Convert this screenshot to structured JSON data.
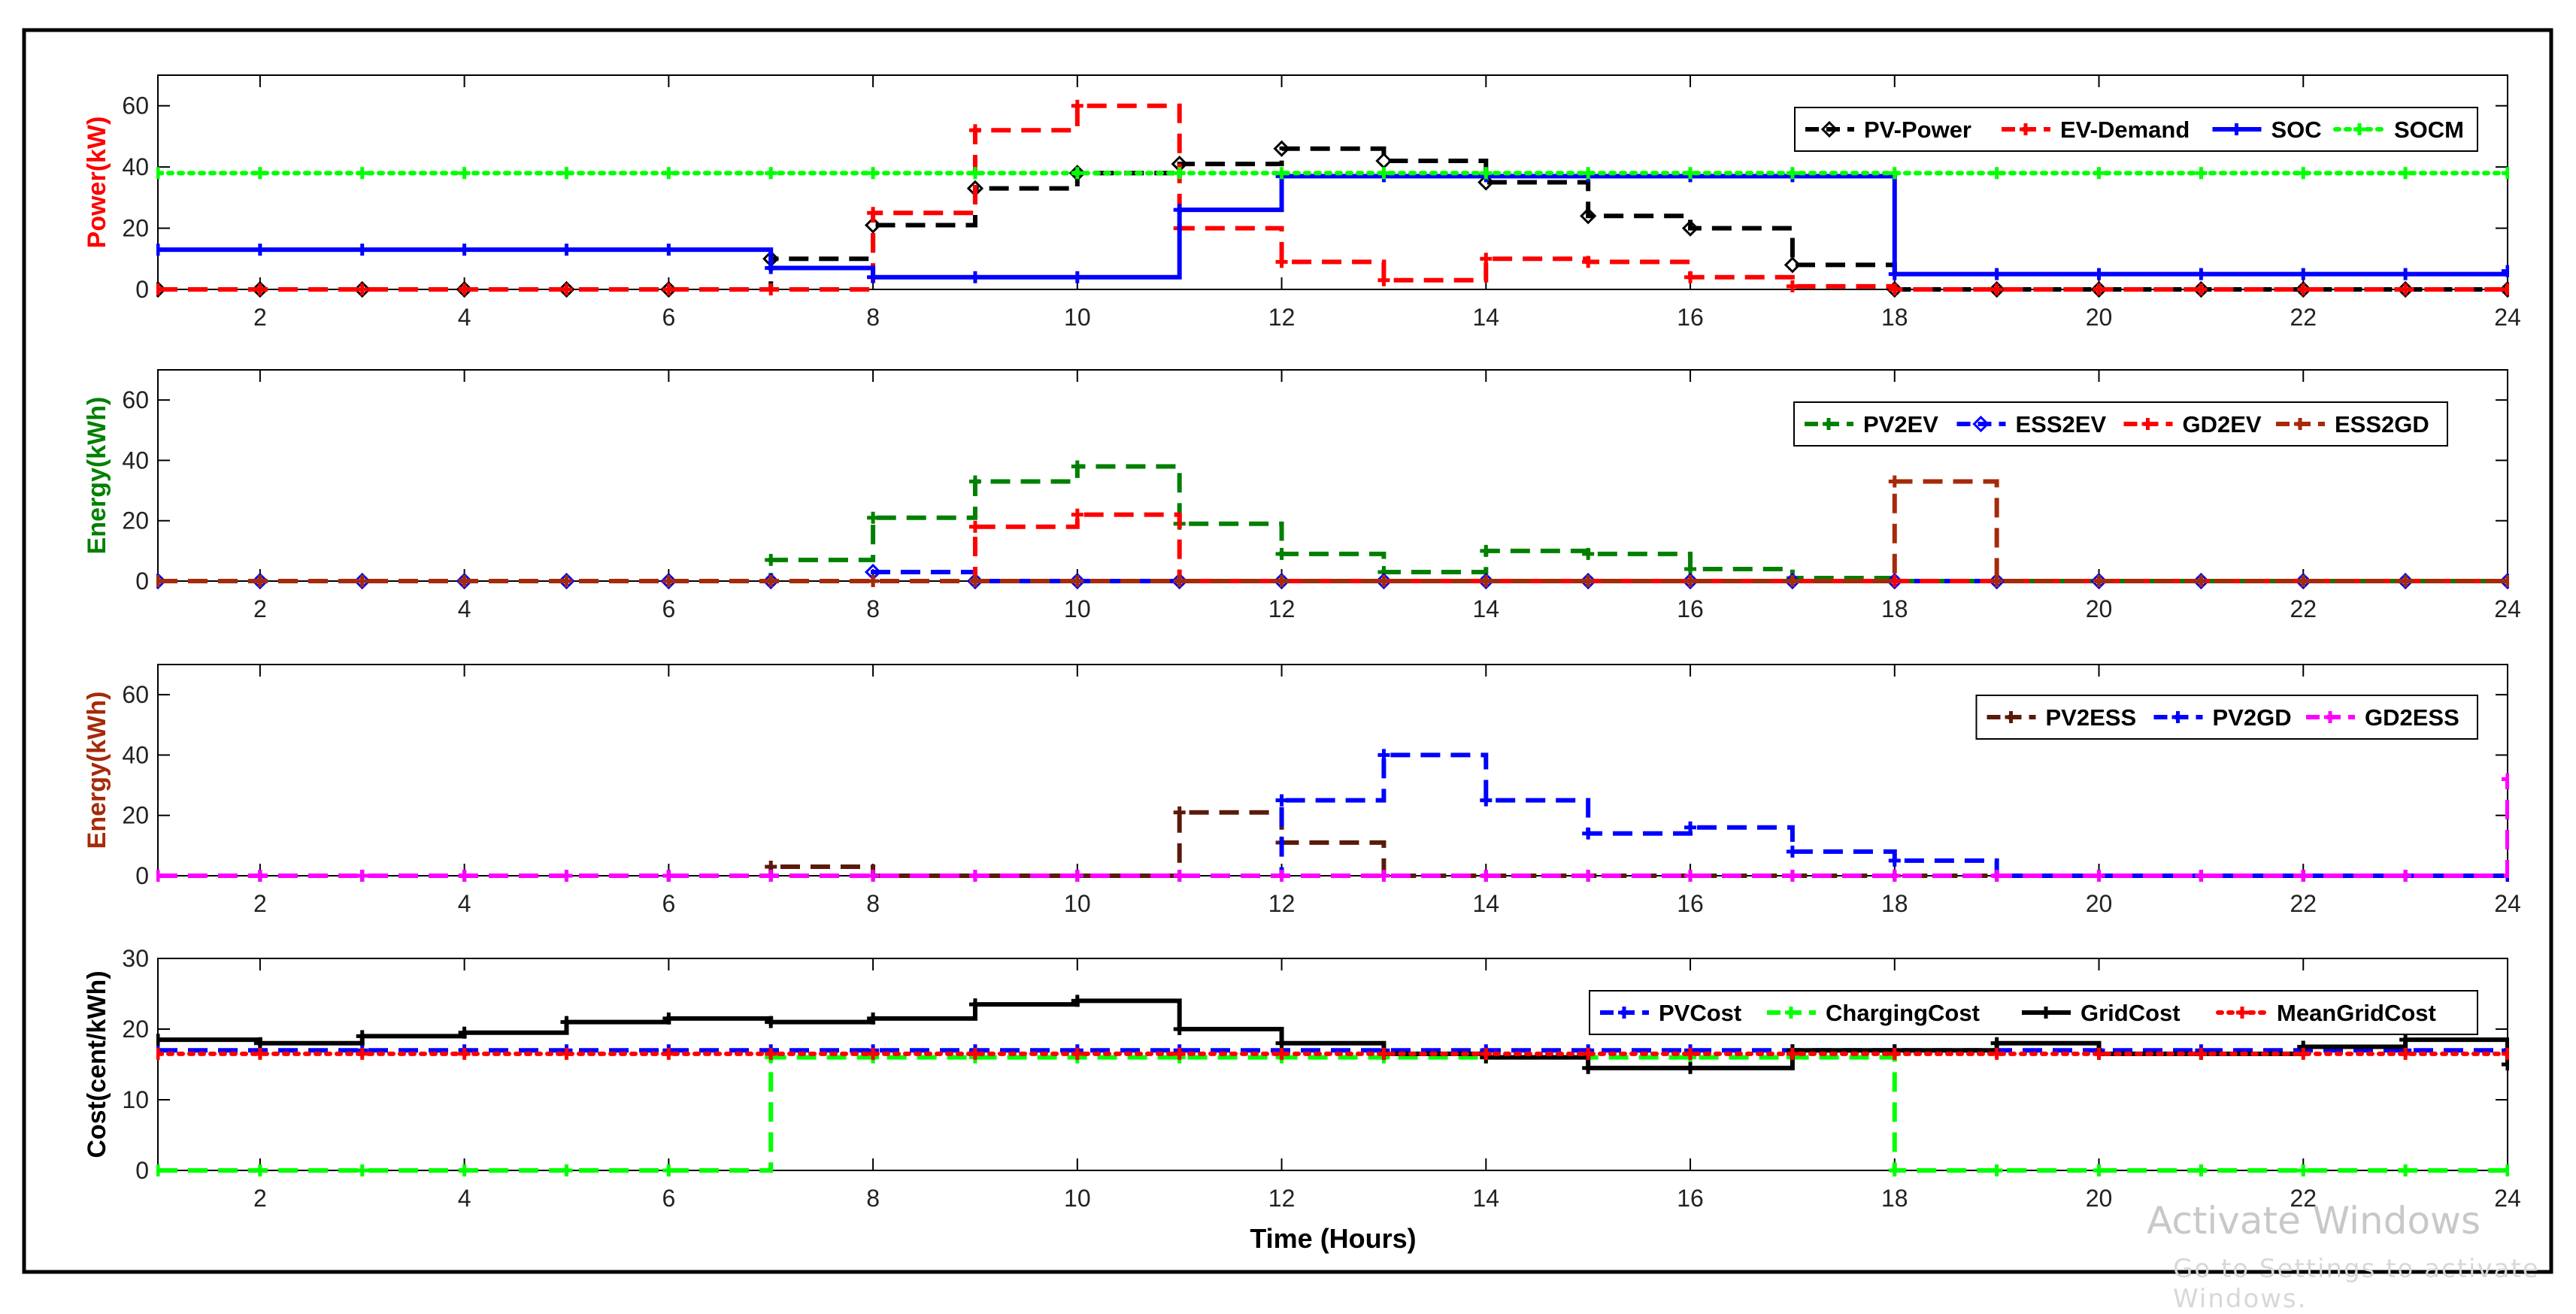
{
  "figure": {
    "xlabel": "Time (Hours)",
    "watermark": "Activate Windows",
    "watermark_sub": "Go to Settings to activate Windows."
  },
  "chart_data": [
    {
      "type": "line",
      "step": true,
      "ylabel": "Power(kW)",
      "ylabel_color": "#ff0000",
      "xlim": [
        1,
        24
      ],
      "ylim": [
        0,
        70
      ],
      "yticks": [
        0,
        20,
        40,
        60
      ],
      "xticks": [
        2,
        4,
        6,
        8,
        10,
        12,
        14,
        16,
        18,
        20,
        22,
        24
      ],
      "grid": false,
      "legend_position": "top-right",
      "x": [
        1,
        2,
        3,
        4,
        5,
        6,
        7,
        8,
        9,
        10,
        11,
        12,
        13,
        14,
        15,
        16,
        17,
        18,
        19,
        20,
        21,
        22,
        23,
        24
      ],
      "series": [
        {
          "name": "PV-Power",
          "color": "#000000",
          "dash": "dash",
          "marker": "diamond",
          "values": [
            0,
            0,
            0,
            0,
            0,
            0,
            10,
            21,
            33,
            38,
            41,
            46,
            42,
            35,
            24,
            20,
            8,
            0,
            0,
            0,
            0,
            0,
            0,
            0
          ]
        },
        {
          "name": "EV-Demand",
          "color": "#ff0000",
          "dash": "dash",
          "marker": "plus",
          "values": [
            0,
            0,
            0,
            0,
            0,
            0,
            0,
            25,
            52,
            60,
            20,
            9,
            3,
            10,
            9,
            4,
            1,
            0,
            0,
            0,
            0,
            0,
            0,
            0
          ]
        },
        {
          "name": "SOC",
          "color": "#0000ff",
          "dash": "solid",
          "marker": "plus",
          "values": [
            13,
            13,
            13,
            13,
            13,
            13,
            7,
            4,
            4,
            4,
            26,
            37,
            37,
            37,
            37,
            37,
            37,
            5,
            5,
            5,
            5,
            5,
            5,
            6
          ]
        },
        {
          "name": "SOCM",
          "color": "#00ff00",
          "dash": "dot",
          "marker": "plus",
          "values": [
            38,
            38,
            38,
            38,
            38,
            38,
            38,
            38,
            38,
            38,
            38,
            38,
            38,
            38,
            38,
            38,
            38,
            38,
            38,
            38,
            38,
            38,
            38,
            38
          ]
        }
      ]
    },
    {
      "type": "line",
      "step": true,
      "ylabel": "Energy(kWh)",
      "ylabel_color": "#008000",
      "xlim": [
        1,
        24
      ],
      "ylim": [
        0,
        70
      ],
      "yticks": [
        0,
        20,
        40,
        60
      ],
      "xticks": [
        2,
        4,
        6,
        8,
        10,
        12,
        14,
        16,
        18,
        20,
        22,
        24
      ],
      "grid": false,
      "legend_position": "top-right",
      "x": [
        1,
        2,
        3,
        4,
        5,
        6,
        7,
        8,
        9,
        10,
        11,
        12,
        13,
        14,
        15,
        16,
        17,
        18,
        19,
        20,
        21,
        22,
        23,
        24
      ],
      "series": [
        {
          "name": "PV2EV",
          "color": "#008000",
          "dash": "dash",
          "marker": "plus",
          "values": [
            0,
            0,
            0,
            0,
            0,
            0,
            7,
            21,
            33,
            38,
            19,
            9,
            3,
            10,
            9,
            4,
            1,
            0,
            0,
            0,
            0,
            0,
            0,
            0
          ]
        },
        {
          "name": "ESS2EV",
          "color": "#0000ff",
          "dash": "dash",
          "marker": "diamond",
          "values": [
            0,
            0,
            0,
            0,
            0,
            0,
            0,
            3,
            0,
            0,
            0,
            0,
            0,
            0,
            0,
            0,
            0,
            0,
            0,
            0,
            0,
            0,
            0,
            0
          ]
        },
        {
          "name": "GD2EV",
          "color": "#ff0000",
          "dash": "dash",
          "marker": "plus",
          "values": [
            0,
            0,
            0,
            0,
            0,
            0,
            0,
            0,
            18,
            22,
            0,
            0,
            0,
            0,
            0,
            0,
            0,
            0,
            0,
            0,
            0,
            0,
            0,
            0
          ]
        },
        {
          "name": "ESS2GD",
          "color": "#a52a0a",
          "dash": "dash",
          "marker": "plus",
          "values": [
            0,
            0,
            0,
            0,
            0,
            0,
            0,
            0,
            0,
            0,
            0,
            0,
            0,
            0,
            0,
            0,
            0,
            33,
            0,
            0,
            0,
            0,
            0,
            0
          ]
        }
      ]
    },
    {
      "type": "line",
      "step": true,
      "ylabel": "Energy(kWh)",
      "ylabel_color": "#a52a0a",
      "xlim": [
        1,
        24
      ],
      "ylim": [
        0,
        70
      ],
      "yticks": [
        0,
        20,
        40,
        60
      ],
      "xticks": [
        2,
        4,
        6,
        8,
        10,
        12,
        14,
        16,
        18,
        20,
        22,
        24
      ],
      "grid": false,
      "legend_position": "top-right",
      "x": [
        1,
        2,
        3,
        4,
        5,
        6,
        7,
        8,
        9,
        10,
        11,
        12,
        13,
        14,
        15,
        16,
        17,
        18,
        19,
        20,
        21,
        22,
        23,
        24
      ],
      "series": [
        {
          "name": "PV2ESS",
          "color": "#5a1a0a",
          "dash": "dash",
          "marker": "plus",
          "values": [
            0,
            0,
            0,
            0,
            0,
            0,
            3,
            0,
            0,
            0,
            21,
            11,
            0,
            0,
            0,
            0,
            0,
            0,
            0,
            0,
            0,
            0,
            0,
            0
          ]
        },
        {
          "name": "PV2GD",
          "color": "#0000ff",
          "dash": "dash",
          "marker": "plus",
          "values": [
            0,
            0,
            0,
            0,
            0,
            0,
            0,
            0,
            0,
            0,
            0,
            25,
            40,
            25,
            14,
            16,
            8,
            5,
            0,
            0,
            0,
            0,
            0,
            0
          ]
        },
        {
          "name": "GD2ESS",
          "color": "#ff00ff",
          "dash": "dash",
          "marker": "plus",
          "values": [
            0,
            0,
            0,
            0,
            0,
            0,
            0,
            0,
            0,
            0,
            0,
            0,
            0,
            0,
            0,
            0,
            0,
            0,
            0,
            0,
            0,
            0,
            0,
            32
          ]
        }
      ]
    },
    {
      "type": "line",
      "step": true,
      "ylabel": "Cost(cent/kWh)",
      "ylabel_color": "#000000",
      "xlim": [
        1,
        24
      ],
      "ylim": [
        0,
        30
      ],
      "yticks": [
        0,
        10,
        20,
        30
      ],
      "xticks": [
        2,
        4,
        6,
        8,
        10,
        12,
        14,
        16,
        18,
        20,
        22,
        24
      ],
      "grid": false,
      "legend_position": "top-right",
      "x": [
        1,
        2,
        3,
        4,
        5,
        6,
        7,
        8,
        9,
        10,
        11,
        12,
        13,
        14,
        15,
        16,
        17,
        18,
        19,
        20,
        21,
        22,
        23,
        24
      ],
      "series": [
        {
          "name": "PVCost",
          "color": "#0000ff",
          "dash": "dash",
          "marker": "plus",
          "values": [
            17,
            17,
            17,
            17,
            17,
            17,
            17,
            17,
            17,
            17,
            17,
            17,
            17,
            17,
            17,
            17,
            17,
            17,
            17,
            17,
            17,
            17,
            17,
            17
          ]
        },
        {
          "name": "ChargingCost",
          "color": "#00ff00",
          "dash": "dash",
          "marker": "plus",
          "values": [
            0,
            0,
            0,
            0,
            0,
            0,
            16,
            16,
            16,
            16,
            16,
            16,
            16,
            16,
            16,
            16,
            16,
            0,
            0,
            0,
            0,
            0,
            0,
            0
          ]
        },
        {
          "name": "GridCost",
          "color": "#000000",
          "dash": "solid",
          "marker": "plus",
          "values": [
            18.5,
            18,
            19,
            19.5,
            21,
            21.5,
            21,
            21.5,
            23.5,
            24,
            20,
            18,
            16.5,
            16,
            14.5,
            14.5,
            17,
            17,
            18,
            16.5,
            16.5,
            17.5,
            18.5,
            15
          ]
        },
        {
          "name": "MeanGridCost",
          "color": "#ff0000",
          "dash": "dot",
          "marker": "plus",
          "values": [
            16.5,
            16.5,
            16.5,
            16.5,
            16.5,
            16.5,
            16.5,
            16.5,
            16.5,
            16.5,
            16.5,
            16.5,
            16.5,
            16.5,
            16.5,
            16.5,
            16.5,
            16.5,
            16.5,
            16.5,
            16.5,
            16.5,
            16.5,
            16.5
          ]
        }
      ]
    }
  ]
}
